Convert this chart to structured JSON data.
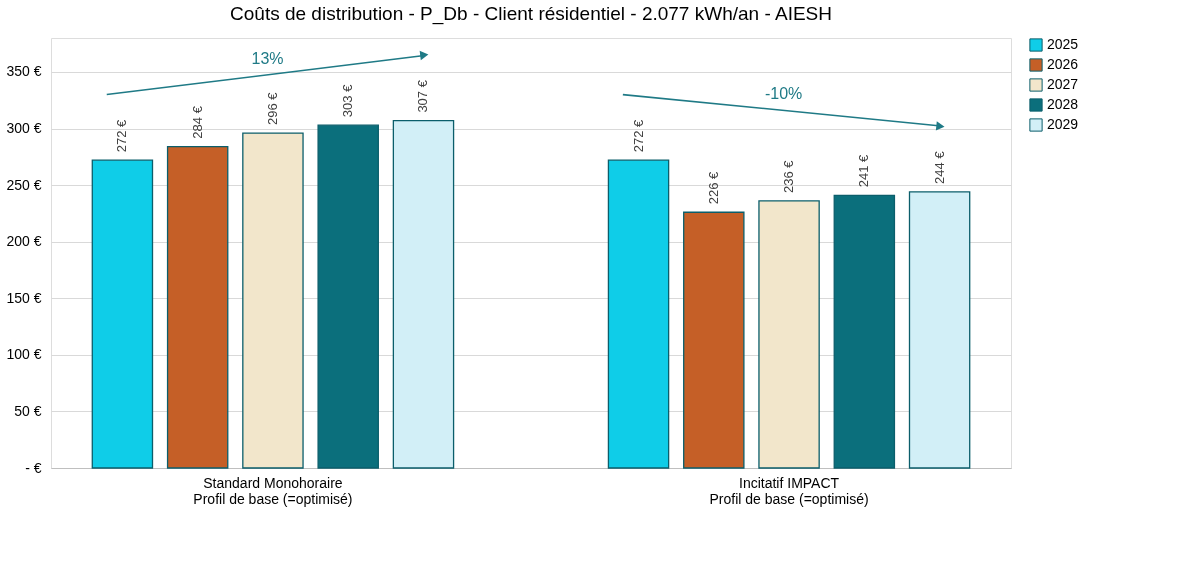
{
  "chart_data": {
    "type": "bar",
    "title": "Coûts de distribution - P_Db - Client résidentiel - 2.077 kWh/an - AIESH",
    "categories": [
      "Standard Monohoraire\nProfil de base (=optimisé)",
      "Incitatif IMPACT\nProfil de base (=optimisé)"
    ],
    "series": [
      {
        "name": "2025",
        "color": "#0fcde8",
        "values": [
          272,
          272
        ],
        "value_labels": [
          "272 €",
          "272 €"
        ]
      },
      {
        "name": "2026",
        "color": "#c55f27",
        "values": [
          284,
          226
        ],
        "value_labels": [
          "284 €",
          "226 €"
        ]
      },
      {
        "name": "2027",
        "color": "#f2e6cb",
        "values": [
          296,
          236
        ],
        "value_labels": [
          "296 €",
          "236 €"
        ]
      },
      {
        "name": "2028",
        "color": "#0b6f7c",
        "values": [
          303,
          241
        ],
        "value_labels": [
          "303 €",
          "241 €"
        ]
      },
      {
        "name": "2029",
        "color": "#d2eff7",
        "values": [
          307,
          244
        ],
        "value_labels": [
          "307 €",
          "244 €"
        ]
      }
    ],
    "ylim": [
      0,
      380
    ],
    "yticks": [
      {
        "value": 0,
        "label": "-  €"
      },
      {
        "value": 50,
        "label": "50 €"
      },
      {
        "value": 100,
        "label": "100 €"
      },
      {
        "value": 150,
        "label": "150 €"
      },
      {
        "value": 200,
        "label": "200 €"
      },
      {
        "value": 250,
        "label": "250 €"
      },
      {
        "value": 300,
        "label": "300 €"
      },
      {
        "value": 350,
        "label": "350 €"
      }
    ],
    "annotations": [
      "13%",
      "-10%"
    ],
    "grid": "y",
    "legend": "right"
  }
}
